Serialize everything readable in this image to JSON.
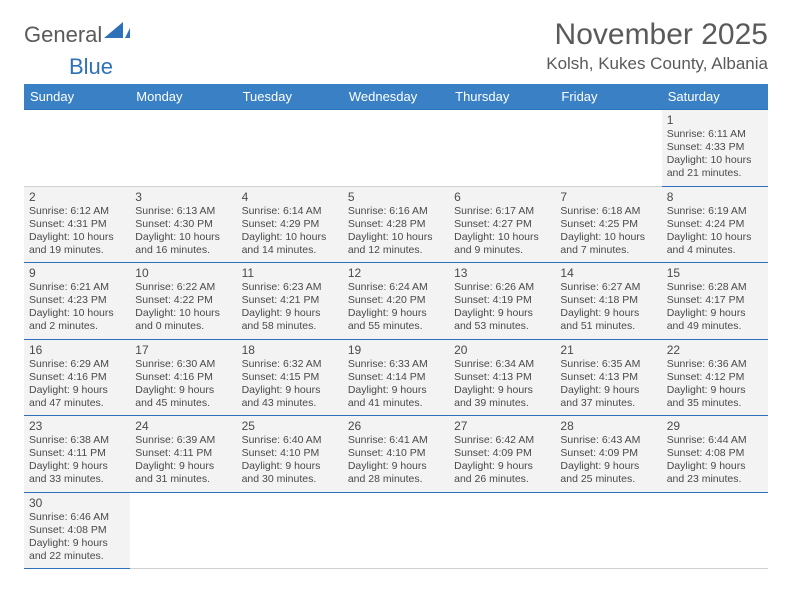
{
  "logo": {
    "part1": "General",
    "part2": "Blue"
  },
  "title": "November 2025",
  "location": "Kolsh, Kukes County, Albania",
  "colors": {
    "header_bg": "#3a80c4",
    "border": "#2f71b8",
    "cell_bg": "#f3f3f3",
    "text": "#4a4a4a",
    "accent": "#2f71b8"
  },
  "days_of_week": [
    "Sunday",
    "Monday",
    "Tuesday",
    "Wednesday",
    "Thursday",
    "Friday",
    "Saturday"
  ],
  "weeks": [
    [
      null,
      null,
      null,
      null,
      null,
      null,
      {
        "n": "1",
        "sunrise": "6:11 AM",
        "sunset": "4:33 PM",
        "day_h": "10",
        "day_m": "21"
      }
    ],
    [
      {
        "n": "2",
        "sunrise": "6:12 AM",
        "sunset": "4:31 PM",
        "day_h": "10",
        "day_m": "19"
      },
      {
        "n": "3",
        "sunrise": "6:13 AM",
        "sunset": "4:30 PM",
        "day_h": "10",
        "day_m": "16"
      },
      {
        "n": "4",
        "sunrise": "6:14 AM",
        "sunset": "4:29 PM",
        "day_h": "10",
        "day_m": "14"
      },
      {
        "n": "5",
        "sunrise": "6:16 AM",
        "sunset": "4:28 PM",
        "day_h": "10",
        "day_m": "12"
      },
      {
        "n": "6",
        "sunrise": "6:17 AM",
        "sunset": "4:27 PM",
        "day_h": "10",
        "day_m": "9"
      },
      {
        "n": "7",
        "sunrise": "6:18 AM",
        "sunset": "4:25 PM",
        "day_h": "10",
        "day_m": "7"
      },
      {
        "n": "8",
        "sunrise": "6:19 AM",
        "sunset": "4:24 PM",
        "day_h": "10",
        "day_m": "4"
      }
    ],
    [
      {
        "n": "9",
        "sunrise": "6:21 AM",
        "sunset": "4:23 PM",
        "day_h": "10",
        "day_m": "2"
      },
      {
        "n": "10",
        "sunrise": "6:22 AM",
        "sunset": "4:22 PM",
        "day_h": "10",
        "day_m": "0"
      },
      {
        "n": "11",
        "sunrise": "6:23 AM",
        "sunset": "4:21 PM",
        "day_h": "9",
        "day_m": "58"
      },
      {
        "n": "12",
        "sunrise": "6:24 AM",
        "sunset": "4:20 PM",
        "day_h": "9",
        "day_m": "55"
      },
      {
        "n": "13",
        "sunrise": "6:26 AM",
        "sunset": "4:19 PM",
        "day_h": "9",
        "day_m": "53"
      },
      {
        "n": "14",
        "sunrise": "6:27 AM",
        "sunset": "4:18 PM",
        "day_h": "9",
        "day_m": "51"
      },
      {
        "n": "15",
        "sunrise": "6:28 AM",
        "sunset": "4:17 PM",
        "day_h": "9",
        "day_m": "49"
      }
    ],
    [
      {
        "n": "16",
        "sunrise": "6:29 AM",
        "sunset": "4:16 PM",
        "day_h": "9",
        "day_m": "47"
      },
      {
        "n": "17",
        "sunrise": "6:30 AM",
        "sunset": "4:16 PM",
        "day_h": "9",
        "day_m": "45"
      },
      {
        "n": "18",
        "sunrise": "6:32 AM",
        "sunset": "4:15 PM",
        "day_h": "9",
        "day_m": "43"
      },
      {
        "n": "19",
        "sunrise": "6:33 AM",
        "sunset": "4:14 PM",
        "day_h": "9",
        "day_m": "41"
      },
      {
        "n": "20",
        "sunrise": "6:34 AM",
        "sunset": "4:13 PM",
        "day_h": "9",
        "day_m": "39"
      },
      {
        "n": "21",
        "sunrise": "6:35 AM",
        "sunset": "4:13 PM",
        "day_h": "9",
        "day_m": "37"
      },
      {
        "n": "22",
        "sunrise": "6:36 AM",
        "sunset": "4:12 PM",
        "day_h": "9",
        "day_m": "35"
      }
    ],
    [
      {
        "n": "23",
        "sunrise": "6:38 AM",
        "sunset": "4:11 PM",
        "day_h": "9",
        "day_m": "33"
      },
      {
        "n": "24",
        "sunrise": "6:39 AM",
        "sunset": "4:11 PM",
        "day_h": "9",
        "day_m": "31"
      },
      {
        "n": "25",
        "sunrise": "6:40 AM",
        "sunset": "4:10 PM",
        "day_h": "9",
        "day_m": "30"
      },
      {
        "n": "26",
        "sunrise": "6:41 AM",
        "sunset": "4:10 PM",
        "day_h": "9",
        "day_m": "28"
      },
      {
        "n": "27",
        "sunrise": "6:42 AM",
        "sunset": "4:09 PM",
        "day_h": "9",
        "day_m": "26"
      },
      {
        "n": "28",
        "sunrise": "6:43 AM",
        "sunset": "4:09 PM",
        "day_h": "9",
        "day_m": "25"
      },
      {
        "n": "29",
        "sunrise": "6:44 AM",
        "sunset": "4:08 PM",
        "day_h": "9",
        "day_m": "23"
      }
    ],
    [
      {
        "n": "30",
        "sunrise": "6:46 AM",
        "sunset": "4:08 PM",
        "day_h": "9",
        "day_m": "22"
      },
      null,
      null,
      null,
      null,
      null,
      null
    ]
  ],
  "labels": {
    "sunrise": "Sunrise:",
    "sunset": "Sunset:",
    "daylight": "Daylight:",
    "hours": "hours",
    "and": "and",
    "minutes": "minutes."
  }
}
